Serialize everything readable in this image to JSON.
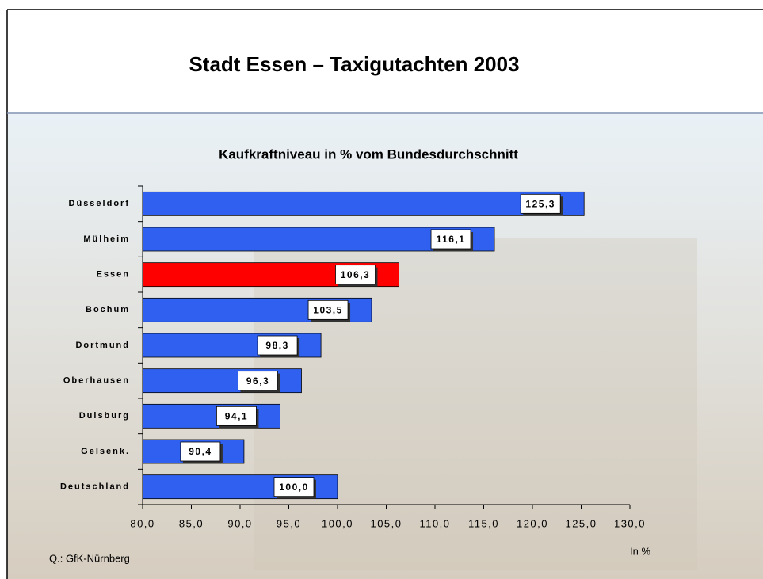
{
  "header": {
    "title": "Stadt Essen – Taxigutachten 2003"
  },
  "chart_data": {
    "type": "bar",
    "orientation": "horizontal",
    "title": "Kaufkraftniveau in % vom Bundesdurchschnitt",
    "categories": [
      "Düsseldorf",
      "Mülheim",
      "Essen",
      "Bochum",
      "Dortmund",
      "Oberhausen",
      "Duisburg",
      "Gelsenk.",
      "Deutschland"
    ],
    "values": [
      125.3,
      116.1,
      106.3,
      103.5,
      98.3,
      96.3,
      94.1,
      90.4,
      100
    ],
    "value_labels": [
      "125,3",
      "116,1",
      "106,3",
      "103,5",
      "98,3",
      "96,3",
      "94,1",
      "90,4",
      "100,0"
    ],
    "colors": [
      "#3060f0",
      "#3060f0",
      "#ff0000",
      "#3060f0",
      "#3060f0",
      "#3060f0",
      "#3060f0",
      "#3060f0",
      "#3060f0"
    ],
    "xlim": [
      80,
      130
    ],
    "xticks": [
      {
        "value": 80,
        "label": "80,0"
      },
      {
        "value": 85,
        "label": "85,0"
      },
      {
        "value": 90,
        "label": "90,0"
      },
      {
        "value": 95,
        "label": "95,0"
      },
      {
        "value": 100,
        "label": "100,0"
      },
      {
        "value": 105,
        "label": "105,0"
      },
      {
        "value": 110,
        "label": "110,0"
      },
      {
        "value": 115,
        "label": "115,0"
      },
      {
        "value": 120,
        "label": "120,0"
      },
      {
        "value": 125,
        "label": "125,0"
      },
      {
        "value": 130,
        "label": "130,0"
      }
    ],
    "x_label": "In %"
  },
  "footer": {
    "source": "Q.: GfK-Nürnberg"
  }
}
